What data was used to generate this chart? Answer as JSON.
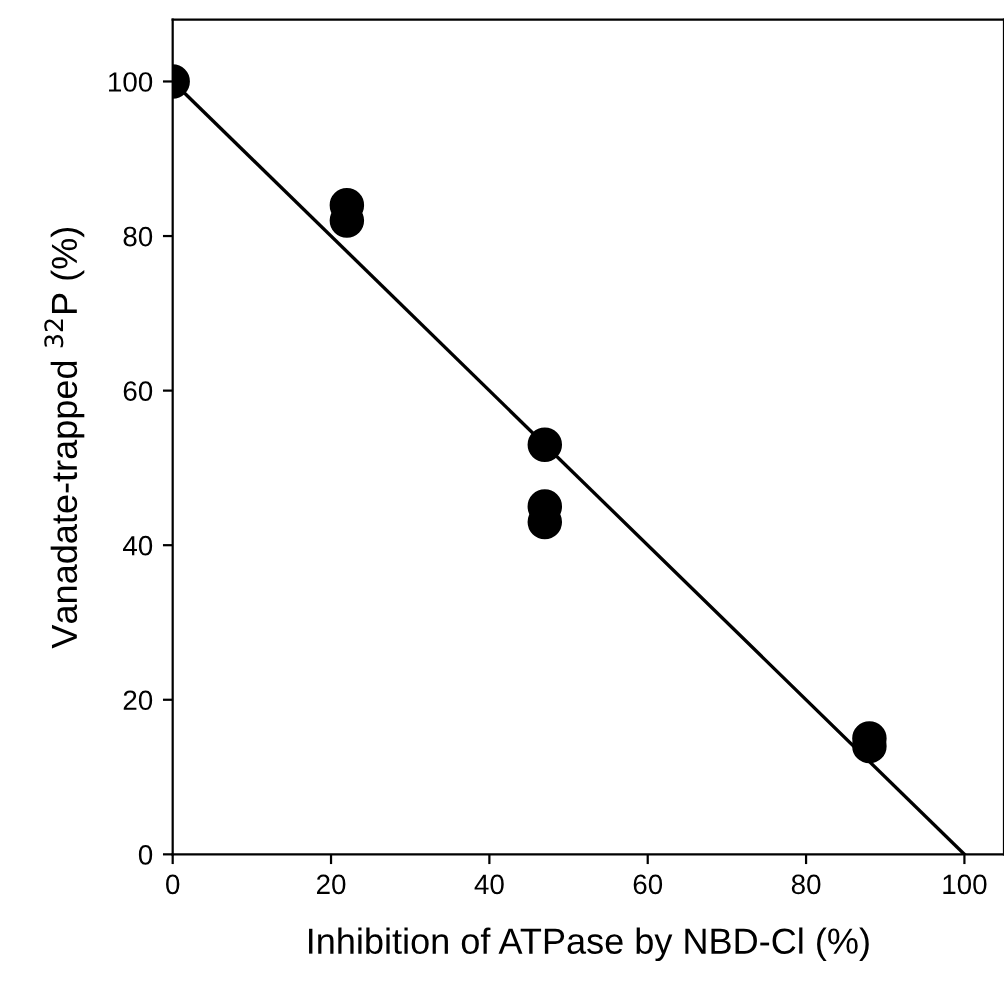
{
  "chart_data": {
    "type": "scatter",
    "xlabel": "Inhibition of ATPase by NBD-Cl (%)",
    "ylabel": "Vanadate-trapped $^{32}$P (%)",
    "xlim": [
      0,
      105
    ],
    "ylim": [
      0,
      108
    ],
    "xticks": [
      0,
      20,
      40,
      60,
      80,
      100
    ],
    "yticks": [
      0,
      20,
      40,
      60,
      80,
      100
    ],
    "marker": "circle",
    "grid": false,
    "series": [
      {
        "color": "#000000",
        "x": [
          0,
          22,
          22,
          47,
          47,
          47,
          88,
          88
        ],
        "values": [
          100,
          84,
          82,
          53,
          45,
          43,
          15,
          14
        ]
      },
      {
        "type": "line",
        "color": "#000000",
        "x": [
          0,
          100
        ],
        "values": [
          100,
          0
        ],
        "marker": "none",
        "line_style": "solid"
      }
    ]
  }
}
